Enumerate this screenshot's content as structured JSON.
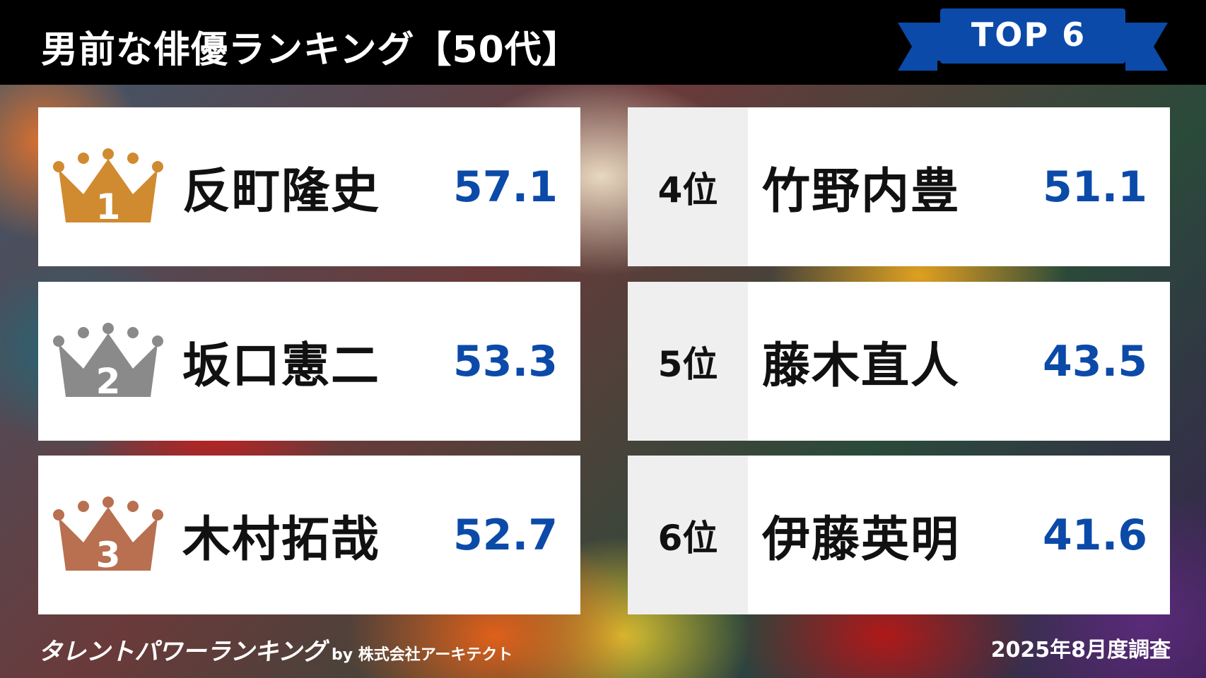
{
  "header": {
    "title": "男前な俳優ランキング【50代】",
    "badge": "TOP 6",
    "badge_color": "#0b4aa8"
  },
  "rankings": [
    {
      "rank": "1",
      "name": "反町隆史",
      "score": "57.1",
      "crown_color": "#d08a30"
    },
    {
      "rank": "2",
      "name": "坂口憲二",
      "score": "53.3",
      "crown_color": "#8a8a8a"
    },
    {
      "rank": "3",
      "name": "木村拓哉",
      "score": "52.7",
      "crown_color": "#b87050"
    },
    {
      "rank": "4位",
      "name": "竹野内豊",
      "score": "51.1"
    },
    {
      "rank": "5位",
      "name": "藤木直人",
      "score": "43.5"
    },
    {
      "rank": "6位",
      "name": "伊藤英明",
      "score": "41.6"
    }
  ],
  "footer": {
    "logo": "タレントパワーランキング",
    "by": "by 株式会社アーキテクト",
    "date": "2025年8月度調査"
  },
  "colors": {
    "score": "#0b4aa8",
    "header_bg": "#000000"
  }
}
